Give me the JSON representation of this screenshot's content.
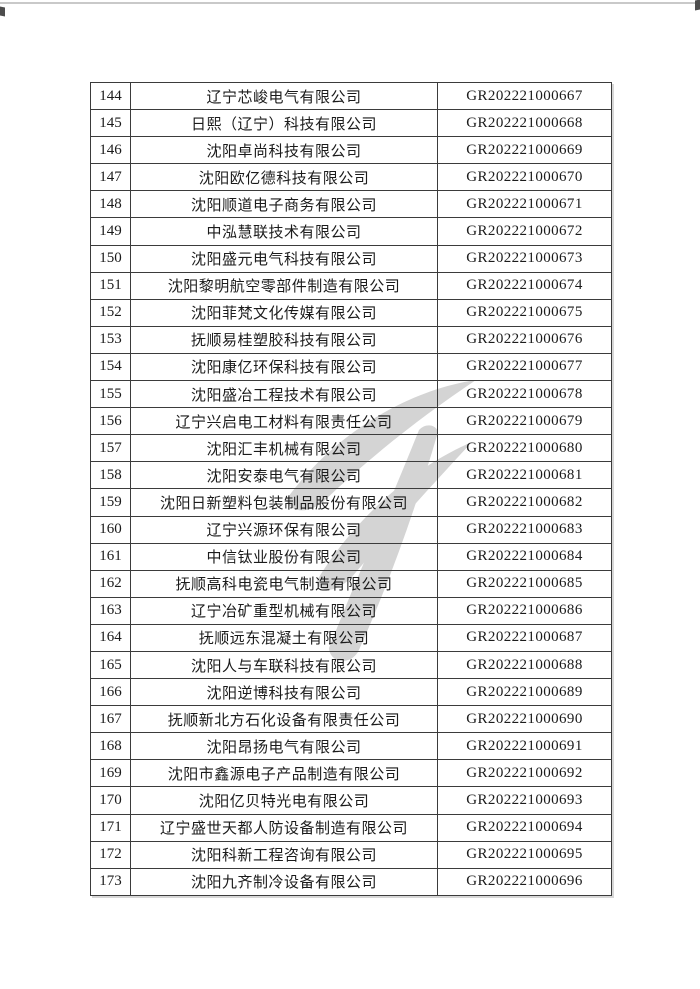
{
  "page": {
    "scan_artifacts": {
      "top_line_color": "#c9c9c9",
      "corner_mark_color": "#4d4d4d"
    }
  },
  "watermark": {
    "color": "#d4d4d4"
  },
  "table": {
    "rows": [
      {
        "no": "144",
        "company": "辽宁芯峻电气有限公司",
        "code": "GR202221000667"
      },
      {
        "no": "145",
        "company": "日熙（辽宁）科技有限公司",
        "code": "GR202221000668"
      },
      {
        "no": "146",
        "company": "沈阳卓尚科技有限公司",
        "code": "GR202221000669"
      },
      {
        "no": "147",
        "company": "沈阳欧亿德科技有限公司",
        "code": "GR202221000670"
      },
      {
        "no": "148",
        "company": "沈阳顺道电子商务有限公司",
        "code": "GR202221000671"
      },
      {
        "no": "149",
        "company": "中泓慧联技术有限公司",
        "code": "GR202221000672"
      },
      {
        "no": "150",
        "company": "沈阳盛元电气科技有限公司",
        "code": "GR202221000673"
      },
      {
        "no": "151",
        "company": "沈阳黎明航空零部件制造有限公司",
        "code": "GR202221000674"
      },
      {
        "no": "152",
        "company": "沈阳菲梵文化传媒有限公司",
        "code": "GR202221000675"
      },
      {
        "no": "153",
        "company": "抚顺易桂塑胶科技有限公司",
        "code": "GR202221000676"
      },
      {
        "no": "154",
        "company": "沈阳康亿环保科技有限公司",
        "code": "GR202221000677"
      },
      {
        "no": "155",
        "company": "沈阳盛冶工程技术有限公司",
        "code": "GR202221000678"
      },
      {
        "no": "156",
        "company": "辽宁兴启电工材料有限责任公司",
        "code": "GR202221000679"
      },
      {
        "no": "157",
        "company": "沈阳汇丰机械有限公司",
        "code": "GR202221000680"
      },
      {
        "no": "158",
        "company": "沈阳安泰电气有限公司",
        "code": "GR202221000681"
      },
      {
        "no": "159",
        "company": "沈阳日新塑料包装制品股份有限公司",
        "code": "GR202221000682"
      },
      {
        "no": "160",
        "company": "辽宁兴源环保有限公司",
        "code": "GR202221000683"
      },
      {
        "no": "161",
        "company": "中信钛业股份有限公司",
        "code": "GR202221000684"
      },
      {
        "no": "162",
        "company": "抚顺高科电瓷电气制造有限公司",
        "code": "GR202221000685"
      },
      {
        "no": "163",
        "company": "辽宁冶矿重型机械有限公司",
        "code": "GR202221000686"
      },
      {
        "no": "164",
        "company": "抚顺远东混凝土有限公司",
        "code": "GR202221000687"
      },
      {
        "no": "165",
        "company": "沈阳人与车联科技有限公司",
        "code": "GR202221000688"
      },
      {
        "no": "166",
        "company": "沈阳逆博科技有限公司",
        "code": "GR202221000689"
      },
      {
        "no": "167",
        "company": "抚顺新北方石化设备有限责任公司",
        "code": "GR202221000690"
      },
      {
        "no": "168",
        "company": "沈阳昂扬电气有限公司",
        "code": "GR202221000691"
      },
      {
        "no": "169",
        "company": "沈阳市鑫源电子产品制造有限公司",
        "code": "GR202221000692"
      },
      {
        "no": "170",
        "company": "沈阳亿贝特光电有限公司",
        "code": "GR202221000693"
      },
      {
        "no": "171",
        "company": "辽宁盛世天都人防设备制造有限公司",
        "code": "GR202221000694"
      },
      {
        "no": "172",
        "company": "沈阳科新工程咨询有限公司",
        "code": "GR202221000695"
      },
      {
        "no": "173",
        "company": "沈阳九齐制冷设备有限公司",
        "code": "GR202221000696"
      }
    ]
  }
}
